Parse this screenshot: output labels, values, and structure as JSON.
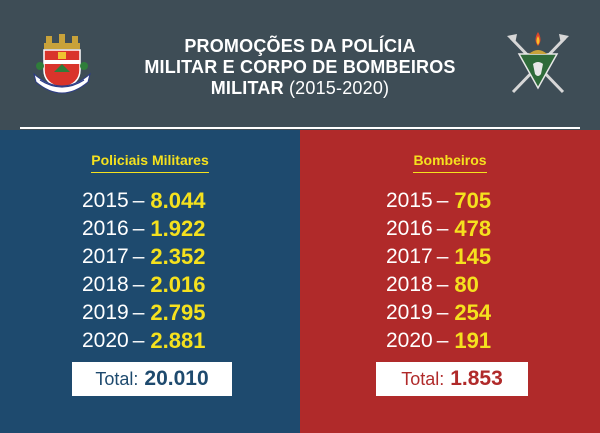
{
  "header": {
    "title_line1": "PROMOÇÕES DA POLÍCIA",
    "title_line2": "MILITAR E CORPO DE BOMBEIROS",
    "title_line3": "MILITAR",
    "title_years": "(2015-2020)"
  },
  "colors": {
    "header_bg": "#3e4d56",
    "police_bg": "#1e4a6e",
    "fire_bg": "#b02a2a",
    "accent_yellow": "#f5e11e"
  },
  "police": {
    "heading": "Policiais Militares",
    "rows": [
      {
        "year": "2015",
        "value": "8.044"
      },
      {
        "year": "2016",
        "value": "1.922"
      },
      {
        "year": "2017",
        "value": "2.352"
      },
      {
        "year": "2018",
        "value": "2.016"
      },
      {
        "year": "2019",
        "value": "2.795"
      },
      {
        "year": "2020",
        "value": "2.881"
      }
    ],
    "total_label": "Total:",
    "total_value": "20.010"
  },
  "fire": {
    "heading": "Bombeiros",
    "rows": [
      {
        "year": "2015",
        "value": "705"
      },
      {
        "year": "2016",
        "value": "478"
      },
      {
        "year": "2017",
        "value": "145"
      },
      {
        "year": "2018",
        "value": "80"
      },
      {
        "year": "2019",
        "value": "254"
      },
      {
        "year": "2020",
        "value": "191"
      }
    ],
    "total_label": "Total:",
    "total_value": "1.853"
  },
  "dash": "–"
}
